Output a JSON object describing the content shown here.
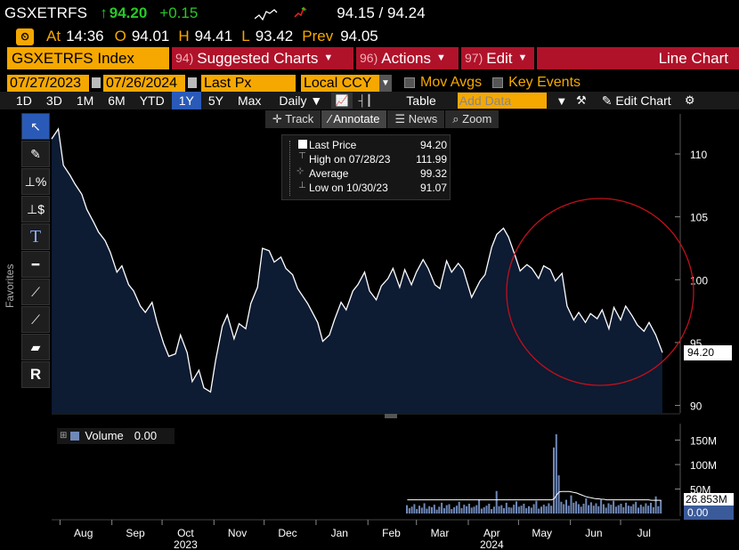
{
  "quote": {
    "symbol": "GSXETRFS",
    "last": "94.20",
    "change": "+0.15",
    "bid_ask": "94.15 / 94.24",
    "up_arrow": "↑"
  },
  "stats": {
    "at_label": "At",
    "at_value": "14:36",
    "open_label": "O",
    "open_value": "94.01",
    "high_label": "H",
    "high_value": "94.41",
    "low_label": "L",
    "low_value": "93.42",
    "prev_label": "Prev",
    "prev_value": "94.05"
  },
  "menu": {
    "security": "GSXETRFS Index",
    "suggested_num": "94)",
    "suggested": "Suggested Charts",
    "actions_num": "96)",
    "actions": "Actions",
    "edit_num": "97)",
    "edit": "Edit",
    "view_title": "Line Chart"
  },
  "controls": {
    "start_date": "07/27/2023",
    "end_date": "07/26/2024",
    "field": "Last Px",
    "currency": "Local CCY",
    "mov_avgs": "Mov Avgs",
    "key_events": "Key Events"
  },
  "periods": [
    "1D",
    "3D",
    "1M",
    "6M",
    "YTD",
    "1Y",
    "5Y",
    "Max"
  ],
  "active_period": "1Y",
  "frequency": "Daily",
  "toolbar": {
    "table": "Table",
    "add_data_placeholder": "Add Data",
    "edit_chart": "Edit Chart"
  },
  "chart_tools": [
    "Track",
    "Annotate",
    "News",
    "Zoom"
  ],
  "active_chart_tool": "Annotate",
  "favorites_label": "Favorites",
  "legend": {
    "last_price_label": "Last Price",
    "last_price_value": "94.20",
    "high_label": "High on 07/28/23",
    "high_value": "111.99",
    "avg_label": "Average",
    "avg_value": "99.32",
    "low_label": "Low on 10/30/23",
    "low_value": "91.07"
  },
  "price_badge": "94.20",
  "volume_legend": {
    "label": "Volume",
    "value": "0.00"
  },
  "volume_badge": "26.853M",
  "volume_badge2": "0.00",
  "colors": {
    "accent_orange": "#f6a800",
    "menu_red": "#b0122a",
    "up_green": "#28c828",
    "area_fill": "#0d1b33",
    "price_line": "#ffffff",
    "volume_bar": "#6f88b8",
    "circle": "#c0101a"
  },
  "chart_data": {
    "type": "area",
    "title": "",
    "xlabel": "",
    "ylabel": "",
    "ylim": [
      89.4,
      113.4
    ],
    "yticks": [
      90,
      95,
      100,
      105,
      110
    ],
    "xtick_labels": [
      "Aug",
      "Sep",
      "Oct",
      "Nov",
      "Dec",
      "Jan",
      "Feb",
      "Mar",
      "Apr",
      "May",
      "Jun",
      "Jul"
    ],
    "year_labels": [
      "2023",
      "2024"
    ],
    "series": [
      {
        "x": [
          "2023-07-27",
          "2023-07-31",
          "2023-08-03",
          "2023-08-07",
          "2023-08-10",
          "2023-08-14",
          "2023-08-17",
          "2023-08-21",
          "2023-08-24",
          "2023-08-28",
          "2023-08-31",
          "2023-09-04",
          "2023-09-07",
          "2023-09-11",
          "2023-09-14",
          "2023-09-18",
          "2023-09-21",
          "2023-09-25",
          "2023-09-28",
          "2023-10-02",
          "2023-10-05",
          "2023-10-09",
          "2023-10-12",
          "2023-10-16",
          "2023-10-19",
          "2023-10-23",
          "2023-10-26",
          "2023-10-30",
          "2023-11-02",
          "2023-11-06",
          "2023-11-09",
          "2023-11-13",
          "2023-11-16",
          "2023-11-20",
          "2023-11-23",
          "2023-11-27",
          "2023-11-30",
          "2023-12-04",
          "2023-12-07",
          "2023-12-11",
          "2023-12-14",
          "2023-12-18",
          "2023-12-21",
          "2023-12-27",
          "2024-01-02",
          "2024-01-05",
          "2024-01-09",
          "2024-01-12",
          "2024-01-16",
          "2024-01-19",
          "2024-01-23",
          "2024-01-26",
          "2024-01-30",
          "2024-02-02",
          "2024-02-06",
          "2024-02-09",
          "2024-02-13",
          "2024-02-16",
          "2024-02-20",
          "2024-02-23",
          "2024-02-27",
          "2024-03-01",
          "2024-03-05",
          "2024-03-08",
          "2024-03-12",
          "2024-03-15",
          "2024-03-19",
          "2024-03-22",
          "2024-03-26",
          "2024-03-29",
          "2024-04-03",
          "2024-04-08",
          "2024-04-11",
          "2024-04-15",
          "2024-04-18",
          "2024-04-22",
          "2024-04-25",
          "2024-04-29",
          "2024-05-02",
          "2024-05-06",
          "2024-05-09",
          "2024-05-13",
          "2024-05-16",
          "2024-05-20",
          "2024-05-23",
          "2024-05-27",
          "2024-05-30",
          "2024-06-03",
          "2024-06-06",
          "2024-06-10",
          "2024-06-13",
          "2024-06-17",
          "2024-06-20",
          "2024-06-24",
          "2024-06-27",
          "2024-07-01",
          "2024-07-04",
          "2024-07-08",
          "2024-07-11",
          "2024-07-15",
          "2024-07-18",
          "2024-07-22",
          "2024-07-26"
        ],
        "values": [
          111.2,
          111.99,
          109.1,
          108.3,
          107.6,
          106.8,
          105.6,
          104.6,
          103.8,
          103.1,
          102.2,
          100.6,
          101.1,
          99.6,
          99.1,
          97.9,
          97.4,
          98.2,
          96.6,
          94.9,
          93.9,
          94.1,
          95.6,
          94.2,
          91.9,
          92.8,
          91.4,
          91.07,
          93.6,
          96.3,
          97.2,
          95.3,
          96.5,
          96.1,
          98.1,
          99.4,
          102.5,
          102.3,
          101.4,
          101.8,
          100.9,
          100.4,
          99.3,
          98.1,
          96.6,
          95.1,
          95.6,
          96.8,
          98.2,
          97.6,
          99.1,
          99.6,
          100.6,
          99.1,
          98.4,
          99.5,
          100.1,
          100.9,
          99.4,
          100.8,
          99.6,
          100.6,
          101.6,
          100.9,
          99.6,
          99.3,
          101.5,
          100.6,
          101.3,
          100.8,
          98.6,
          99.9,
          100.4,
          102.6,
          103.6,
          104.1,
          103.4,
          101.9,
          100.7,
          101.2,
          100.9,
          100.1,
          101.1,
          100.8,
          99.9,
          100.5,
          97.9,
          96.8,
          97.4,
          96.6,
          97.3,
          96.9,
          97.6,
          96.1,
          97.8,
          96.8,
          97.9,
          97.1,
          96.4,
          95.9,
          96.6,
          95.6,
          94.2
        ]
      }
    ],
    "volume": {
      "ylim": [
        0,
        180
      ],
      "yticks": [
        50,
        100,
        150
      ],
      "ytick_labels": [
        "50M",
        "100M",
        "150M"
      ],
      "values": [
        17,
        11,
        14,
        19,
        9,
        16,
        12,
        21,
        10,
        15,
        13,
        18,
        8,
        14,
        22,
        11,
        17,
        19,
        9,
        13,
        16,
        24,
        11,
        18,
        15,
        20,
        12,
        14,
        17,
        29,
        10,
        13,
        16,
        20,
        9,
        14,
        46,
        15,
        17,
        11,
        22,
        13,
        12,
        18,
        25,
        14,
        16,
        20,
        11,
        15,
        12,
        19,
        26,
        10,
        14,
        18,
        15,
        21,
        16,
        135,
        162,
        78,
        24,
        19,
        28,
        16,
        37,
        22,
        25,
        19,
        14,
        20,
        31,
        17,
        23,
        16,
        21,
        15,
        28,
        19,
        12,
        21,
        18,
        26,
        14,
        17,
        20,
        13,
        22,
        16,
        15,
        19,
        24,
        12,
        18,
        14,
        21,
        16,
        22,
        13,
        35,
        15,
        27
      ],
      "avg_line": [
        28,
        28,
        28,
        28,
        28,
        28,
        28,
        28,
        28,
        28,
        28,
        28,
        28,
        28,
        28,
        28,
        28,
        28,
        28,
        28,
        28,
        28,
        28,
        28,
        28,
        28,
        28,
        28,
        28,
        28,
        28,
        28,
        28,
        28,
        28,
        28,
        28,
        28,
        28,
        28,
        28,
        28,
        28,
        28,
        28,
        28,
        28,
        28,
        28,
        28,
        28,
        28,
        28,
        28,
        28,
        28,
        28,
        28,
        28,
        30,
        38,
        44,
        45,
        45,
        45,
        45,
        44,
        43,
        42,
        40,
        38,
        36,
        34,
        33,
        32,
        31,
        30,
        30,
        29,
        29,
        28,
        28,
        28,
        28,
        28,
        28,
        28,
        28,
        28,
        28,
        28,
        28,
        28,
        28,
        28,
        28,
        28,
        28,
        27,
        27,
        27,
        27,
        27
      ]
    }
  }
}
